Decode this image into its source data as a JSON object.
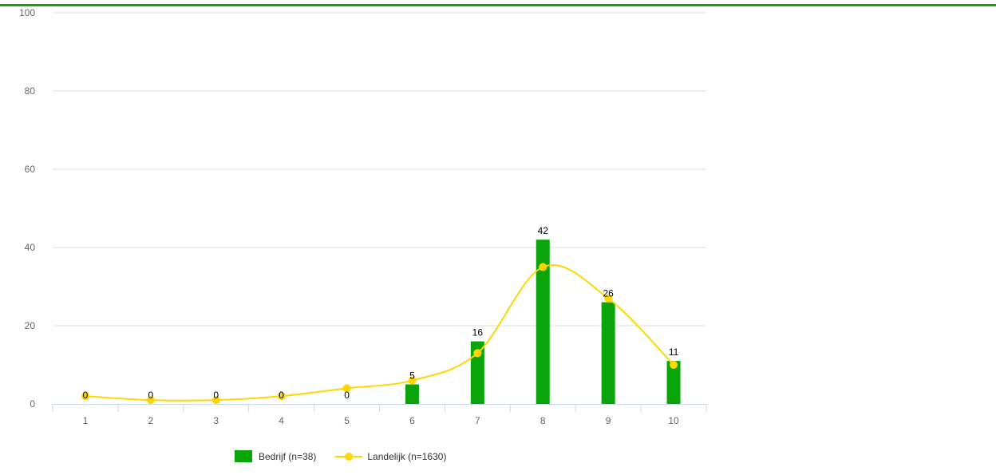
{
  "chart_data": {
    "type": "bar",
    "categories": [
      "1",
      "2",
      "3",
      "4",
      "5",
      "6",
      "7",
      "8",
      "9",
      "10"
    ],
    "ylim": [
      0,
      100
    ],
    "y_ticks": [
      0,
      20,
      40,
      60,
      80,
      100
    ],
    "grid": true,
    "legend_position": "bottom",
    "series": [
      {
        "name": "Bedrijf (n=38)",
        "kind": "bar",
        "color": "#0aa50a",
        "values": [
          0,
          0,
          0,
          0,
          0,
          5,
          16,
          42,
          26,
          11
        ],
        "labels": [
          "0",
          "0",
          "0",
          "0",
          "0",
          "5",
          "16",
          "42",
          "26",
          "11"
        ]
      },
      {
        "name": "Landelijk (n=1630)",
        "kind": "spline",
        "color": "#ffd700",
        "values": [
          2,
          1,
          1,
          2,
          4,
          6,
          13,
          35,
          27,
          10
        ]
      }
    ]
  },
  "colors": {
    "top_rule": "#17a00f",
    "grid": "#dddddd",
    "axis": "#ccd6eb"
  }
}
